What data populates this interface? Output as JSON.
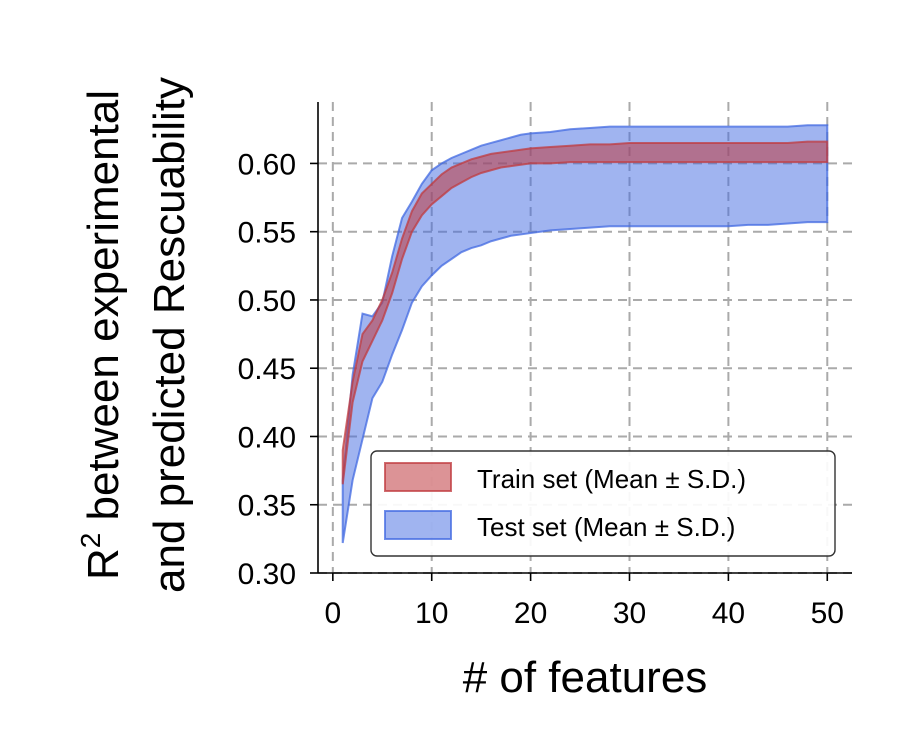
{
  "chart_data": {
    "type": "area",
    "xlabel": "# of features",
    "ylabel_line1": "R",
    "ylabel_sup": "2",
    "ylabel_line1_rest": " between experimental",
    "ylabel_line2": "and predicted Rescuability",
    "xlim": [
      -1.5,
      52.5
    ],
    "ylim": [
      0.3,
      0.645
    ],
    "xticks": [
      0,
      10,
      20,
      30,
      40,
      50
    ],
    "xtick_labels": [
      "0",
      "10",
      "20",
      "30",
      "40",
      "50"
    ],
    "yticks": [
      0.3,
      0.35,
      0.4,
      0.45,
      0.5,
      0.55,
      0.6
    ],
    "ytick_labels": [
      "0.30",
      "0.35",
      "0.40",
      "0.45",
      "0.50",
      "0.55",
      "0.60"
    ],
    "grid": true,
    "legend_position": "lower-right",
    "x": [
      1,
      2,
      3,
      4,
      5,
      6,
      7,
      8,
      9,
      10,
      11,
      12,
      13,
      14,
      15,
      16,
      17,
      18,
      19,
      20,
      22,
      24,
      26,
      28,
      30,
      32,
      34,
      36,
      38,
      40,
      42,
      44,
      46,
      48,
      50
    ],
    "series": [
      {
        "name": "Train set (Mean ± S.D.)",
        "color": "#c03b3f",
        "upper": [
          0.39,
          0.44,
          0.475,
          0.485,
          0.5,
          0.52,
          0.545,
          0.565,
          0.578,
          0.585,
          0.592,
          0.597,
          0.6,
          0.603,
          0.605,
          0.607,
          0.608,
          0.609,
          0.61,
          0.611,
          0.612,
          0.613,
          0.614,
          0.614,
          0.615,
          0.615,
          0.615,
          0.615,
          0.615,
          0.615,
          0.615,
          0.615,
          0.615,
          0.616,
          0.616
        ],
        "lower": [
          0.365,
          0.425,
          0.455,
          0.47,
          0.485,
          0.505,
          0.53,
          0.55,
          0.562,
          0.57,
          0.576,
          0.582,
          0.586,
          0.59,
          0.593,
          0.595,
          0.597,
          0.598,
          0.599,
          0.6,
          0.6,
          0.601,
          0.601,
          0.601,
          0.601,
          0.601,
          0.601,
          0.601,
          0.601,
          0.601,
          0.601,
          0.601,
          0.601,
          0.601,
          0.601
        ]
      },
      {
        "name": "Test set (Mean ± S.D.)",
        "color": "#4169e1",
        "upper": [
          0.368,
          0.445,
          0.49,
          0.488,
          0.498,
          0.532,
          0.56,
          0.572,
          0.585,
          0.595,
          0.6,
          0.604,
          0.607,
          0.61,
          0.613,
          0.615,
          0.617,
          0.619,
          0.621,
          0.622,
          0.623,
          0.625,
          0.626,
          0.627,
          0.627,
          0.627,
          0.627,
          0.627,
          0.627,
          0.627,
          0.627,
          0.627,
          0.627,
          0.628,
          0.628
        ],
        "lower": [
          0.322,
          0.368,
          0.398,
          0.428,
          0.44,
          0.46,
          0.478,
          0.498,
          0.51,
          0.518,
          0.525,
          0.53,
          0.535,
          0.538,
          0.54,
          0.543,
          0.545,
          0.547,
          0.548,
          0.549,
          0.551,
          0.552,
          0.553,
          0.554,
          0.554,
          0.554,
          0.554,
          0.554,
          0.554,
          0.554,
          0.555,
          0.555,
          0.556,
          0.557,
          0.557
        ]
      }
    ]
  }
}
